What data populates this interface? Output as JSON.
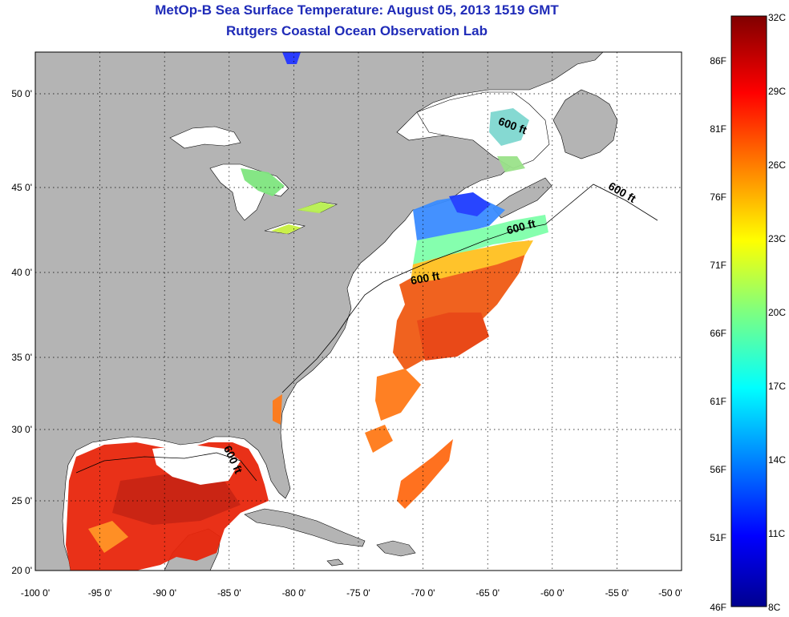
{
  "header": {
    "title": "MetOp-B Sea Surface Temperature:  August 05, 2013 1519 GMT",
    "subtitle": "Rutgers Coastal Ocean Observation Lab"
  },
  "map": {
    "lon_range": [
      -100,
      -50
    ],
    "lat_range": [
      20,
      52.5
    ],
    "lon_ticks": [
      "-100 0'",
      "-95 0'",
      "-90 0'",
      "-85 0'",
      "-80 0'",
      "-75 0'",
      "-70 0'",
      "-65 0'",
      "-60 0'",
      "-55 0'",
      "-50 0'"
    ],
    "lat_ticks": [
      "20 0'",
      "25 0'",
      "30 0'",
      "35 0'",
      "40 0'",
      "45 0'",
      "50 0'"
    ],
    "grid": "dotted",
    "contour_label": "600 ft",
    "colors": {
      "land": "#b4b4b4",
      "ocean_no_data": "#ffffff",
      "title": "#1f2bb8"
    }
  },
  "colorbar": {
    "celsius_labels": [
      "32C",
      "29C",
      "26C",
      "23C",
      "20C",
      "17C",
      "14C",
      "11C",
      "8C"
    ],
    "fahrenheit_labels": [
      "86F",
      "81F",
      "76F",
      "71F",
      "66F",
      "61F",
      "56F",
      "51F",
      "46F"
    ],
    "range_c": [
      8,
      32
    ],
    "colormap": "jet"
  }
}
